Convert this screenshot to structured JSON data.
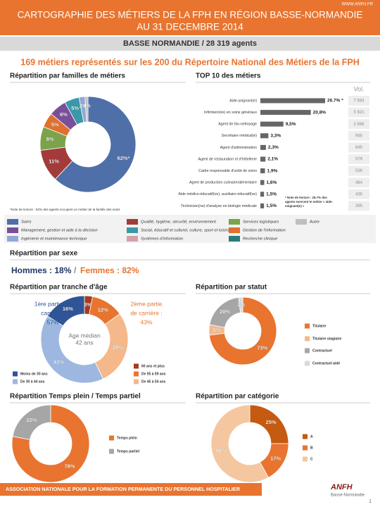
{
  "header": {
    "url": "WWW.ANFH.FR",
    "title_lines": [
      "CARTOGRAPHIE DES MÉTIERS DE LA FPH EN RÉGION BASSE-NORMANDIE",
      "AU 31 DECEMBRE 2014"
    ],
    "subtitle": "BASSE NORMANDIE / 28 319 agents",
    "headline": "169 métiers représentés sur les 200 du Répertoire National des Métiers de la FPH"
  },
  "sexe": {
    "title": "Répartition par sexe",
    "hommes": "Hommes : 18%",
    "separator": "/",
    "femmes": "Femmes : 82%"
  },
  "footer": {
    "text": "ASSOCIATION NATIONALE POUR LA FORMATION PERMANENTE DU PERSONNEL HOSPITALIER",
    "logo": "ANFH",
    "logo_sub": "Basse-Normandie",
    "page": "1"
  },
  "chart_data": [
    {
      "type": "donut",
      "title": "Répartition par familles de métiers",
      "categories": [
        "Soins",
        "Qualité, hygiène, sécurité, environnement",
        "Services logistiques",
        "Gestion de l'information",
        "Management, gestion et aide à la décision",
        "Social, éducatif et culturel, culture, sport et loisirs",
        "Ingénierie et maintenance technique",
        "Autre",
        "Systèmes d'information",
        "Recherche clinique"
      ],
      "values": [
        62,
        11,
        8,
        5,
        6,
        5,
        2,
        1,
        null,
        null
      ],
      "value_labels": [
        "62%*",
        "11%",
        "8%",
        "5%",
        "6%",
        "5%",
        "2%",
        "1%",
        null,
        null
      ],
      "colors": [
        "#4f6fa8",
        "#a33b3b",
        "#7aa34a",
        "#e0702e",
        "#7a4f9a",
        "#3a98a8",
        "#8fa8d6",
        "#bfbfbf",
        "#d4a0a8",
        "#2a7a7a"
      ],
      "note": "*Note de lecture : 62% des agents occupent un métier de la famille des soins"
    },
    {
      "type": "bar",
      "title": "TOP 10 des métiers",
      "categories": [
        "Aide-soignant(e)",
        "Infirmier(ère) en soins généraux",
        "Agent de bio-nettoyage",
        "Secrétaire médical(e)",
        "Agent d'administration",
        "Agent de restauration et d'hôtellerie",
        "Cadre responsable d'unité de soins",
        "Agent de production culinaire/alimentaire",
        "Aide médico-éducatif(ve), auxiliaire éducatif(ve)",
        "Technicien(ne) d'analyse en biologie médicale"
      ],
      "values": [
        26.7,
        20.8,
        9.5,
        3.3,
        2.3,
        2.1,
        1.9,
        1.6,
        1.5,
        1.5
      ],
      "value_labels": [
        "26.7% *",
        "20,8%",
        "9,5%",
        "3,3%",
        "2,3%",
        "2,1%",
        "1,9%",
        "1,6%",
        "1,5%",
        "1,5%"
      ],
      "color": "#666666",
      "volume_header": "Vol.",
      "volumes": [
        "7 583",
        "5 921",
        "2 686",
        "950",
        "645",
        "579",
        "536",
        "464",
        "430",
        "395"
      ],
      "note": [
        "* Note de lecture : 26.7% des",
        "agents exercent le métier « aide-",
        "soignant(e) »"
      ]
    },
    {
      "type": "donut",
      "title": "Répartition par tranche d'âge",
      "categories": [
        "60 ans et plus",
        "De 55 à 59 ans",
        "De 45 à 54 ans",
        "De 30 à 44 ans",
        "Moins de 30 ans"
      ],
      "values": [
        3,
        12,
        28,
        41,
        16
      ],
      "value_labels": [
        "3%",
        "12%",
        "28%",
        "41%",
        "16%"
      ],
      "colors": [
        "#a83a1f",
        "#e8742f",
        "#f5b88a",
        "#9db7e0",
        "#2f5597"
      ],
      "center_label": [
        "Age médian",
        "42 ans"
      ],
      "annotations": [
        [
          "1ère partie de",
          "carrière :",
          "57%"
        ],
        [
          "2ème partie",
          "de carrière :",
          "43%"
        ]
      ]
    },
    {
      "type": "donut",
      "title": "Répartition par statut",
      "categories": [
        "Titulaire",
        "Titulaire stagiaire",
        "Contractuel",
        "Contractuel aidé"
      ],
      "values": [
        73,
        5,
        20,
        2
      ],
      "value_labels": [
        "73%",
        "5%",
        "20%",
        "2%"
      ],
      "colors": [
        "#e8742f",
        "#f5b88a",
        "#a6a6a6",
        "#d9d9d9"
      ]
    },
    {
      "type": "donut",
      "title": "Répartition Temps plein / Temps partiel",
      "categories": [
        "Temps plein",
        "Temps partiel"
      ],
      "values": [
        78,
        22
      ],
      "value_labels": [
        "78%",
        "22%"
      ],
      "colors": [
        "#e8742f",
        "#a6a6a6"
      ]
    },
    {
      "type": "donut",
      "title": "Répartition par catégorie",
      "categories": [
        "A",
        "B",
        "C"
      ],
      "values": [
        25,
        17,
        58
      ],
      "value_labels": [
        "25%",
        "17%",
        "58%"
      ],
      "colors": [
        "#c55a11",
        "#e8742f",
        "#f5c7a0"
      ]
    }
  ]
}
